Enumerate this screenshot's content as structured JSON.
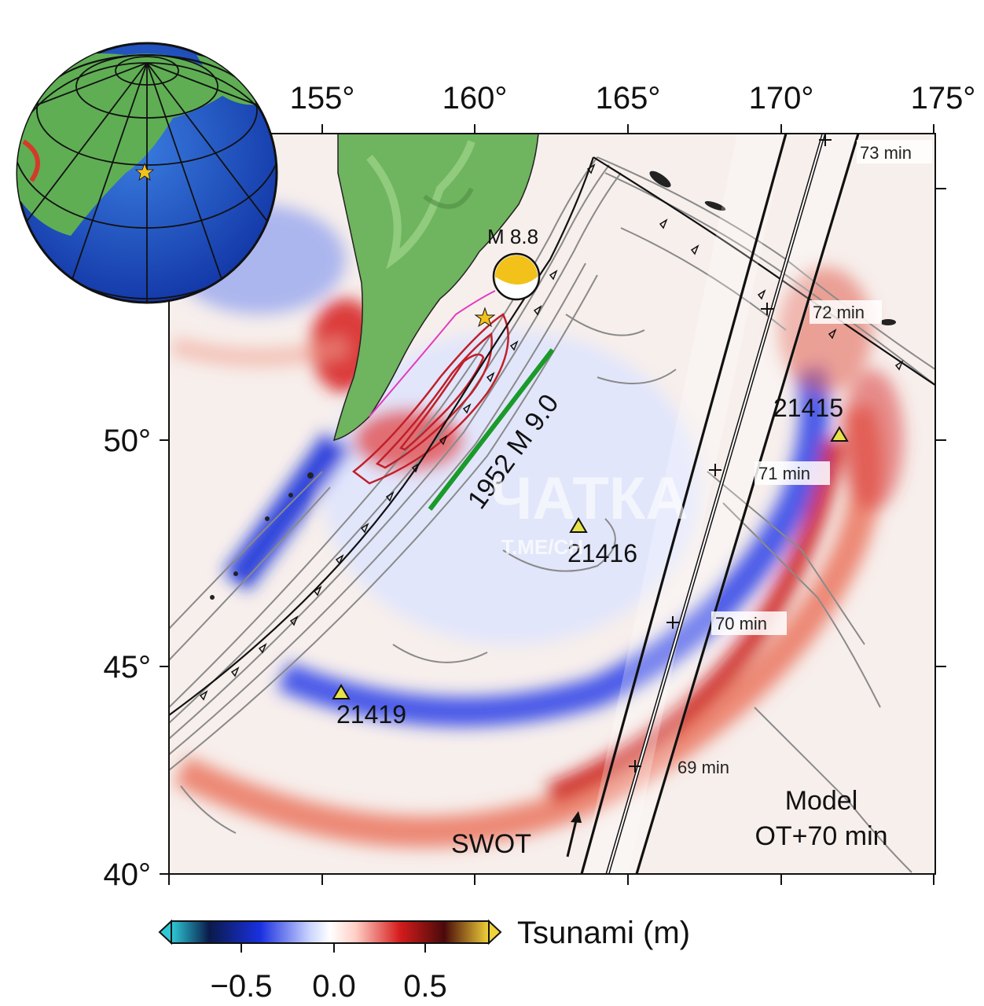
{
  "map": {
    "lon_ticks": [
      "155°",
      "160°",
      "165°",
      "170°",
      "175°"
    ],
    "lat_ticks": [
      "50°",
      "45°",
      "40°"
    ],
    "event_label": "M 8.8",
    "historic_rupture_label": "1952 M 9.0",
    "dart_stations": [
      {
        "id": "21415"
      },
      {
        "id": "21416"
      },
      {
        "id": "21419"
      }
    ],
    "swot_times": [
      "73 min",
      "72 min",
      "71 min",
      "70 min",
      "69 min"
    ],
    "swot_label": "SWOT",
    "model_label_line1": "Model",
    "model_label_line2": "OT+70 min",
    "watermark_main": "ЧАТКА",
    "watermark_sub": "T.ME/CH"
  },
  "colorbar": {
    "title": "Tsunami (m)",
    "ticks": [
      "−0.5",
      "0.0",
      "0.5"
    ],
    "range": [
      -1.0,
      1.0
    ]
  },
  "colors": {
    "land": "#6fb45e",
    "negative": "#1a2fd6",
    "positive": "#d21a1a",
    "contour": "#8a8a8a",
    "rupture_green": "#1a9a2a",
    "epicenter_star": "#f2c21a"
  }
}
